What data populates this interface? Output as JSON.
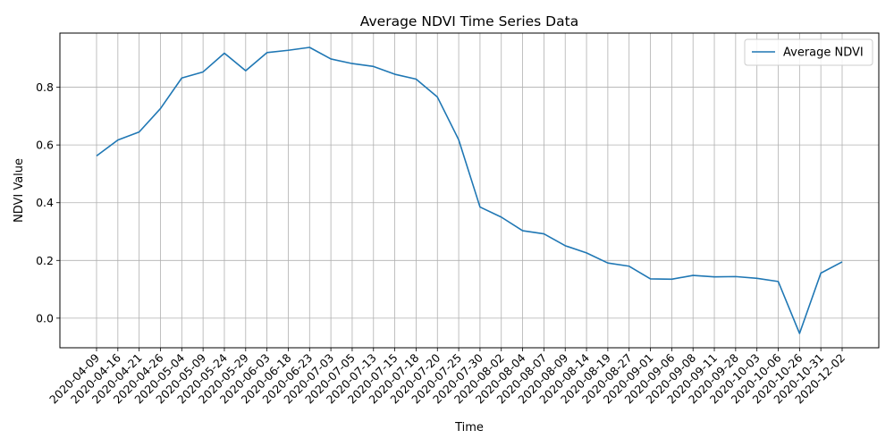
{
  "chart_data": {
    "type": "line",
    "title": "Average NDVI Time Series Data",
    "xlabel": "Time",
    "ylabel": "NDVI Value",
    "categories": [
      "2020-04-09",
      "2020-04-16",
      "2020-04-21",
      "2020-04-26",
      "2020-05-04",
      "2020-05-09",
      "2020-05-24",
      "2020-05-29",
      "2020-06-03",
      "2020-06-18",
      "2020-06-23",
      "2020-07-03",
      "2020-07-05",
      "2020-07-13",
      "2020-07-15",
      "2020-07-18",
      "2020-07-20",
      "2020-07-25",
      "2020-07-30",
      "2020-08-02",
      "2020-08-04",
      "2020-08-07",
      "2020-08-09",
      "2020-08-14",
      "2020-08-19",
      "2020-08-27",
      "2020-09-01",
      "2020-09-06",
      "2020-09-08",
      "2020-09-11",
      "2020-09-28",
      "2020-10-03",
      "2020-10-06",
      "2020-10-26",
      "2020-10-31",
      "2020-12-02"
    ],
    "series": [
      {
        "name": "Average NDVI",
        "color": "#1f77b4",
        "values": [
          0.562,
          0.617,
          0.645,
          0.726,
          0.832,
          0.853,
          0.918,
          0.857,
          0.92,
          0.928,
          0.938,
          0.898,
          0.882,
          0.872,
          0.845,
          0.828,
          0.766,
          0.618,
          0.385,
          0.35,
          0.303,
          0.292,
          0.251,
          0.226,
          0.191,
          0.18,
          0.136,
          0.135,
          0.148,
          0.143,
          0.144,
          0.138,
          0.127,
          -0.053,
          0.156,
          0.195
        ]
      }
    ],
    "yticks": [
      0.0,
      0.2,
      0.4,
      0.6,
      0.8
    ],
    "ytick_labels": [
      "0.0",
      "0.2",
      "0.4",
      "0.6",
      "0.8"
    ],
    "ylim": [
      -0.1026,
      0.9876
    ],
    "grid": true,
    "legend_position": "top-right"
  }
}
